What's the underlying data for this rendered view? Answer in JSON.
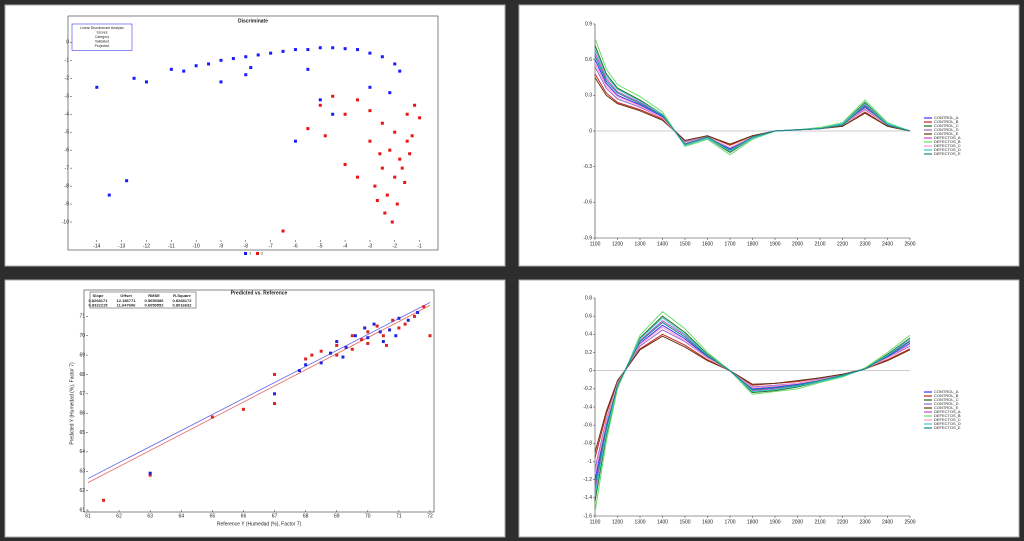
{
  "chart_data": [
    {
      "type": "scatter",
      "title": "Discriminate",
      "legend": "bottom",
      "info_box": [
        "Linear Discriminant Analysis",
        "Scores",
        "Category",
        "Validated",
        "Projected"
      ],
      "xlim": [
        -15,
        -0.5
      ],
      "xticks": [
        -14,
        -13,
        -12,
        -11,
        -10,
        -9,
        -8,
        -7,
        -6,
        -5,
        -4,
        -3,
        -2,
        -1
      ],
      "ylim": [
        -11,
        0.8
      ],
      "yticks": [
        0,
        -1,
        -2,
        -3,
        -4,
        -5,
        -6,
        -7,
        -8,
        -9,
        -10
      ],
      "series": [
        {
          "name": "1",
          "color": "#1a1aff",
          "x": [
            -14,
            -12.5,
            -12,
            -11,
            -10,
            -9.5,
            -9,
            -8.5,
            -8,
            -7.5,
            -7,
            -6.5,
            -6,
            -5.5,
            -5,
            -4.5,
            -4,
            -3.5,
            -3,
            -2.5,
            -2,
            -1.8,
            -9,
            -8,
            -5,
            -4.5,
            -6,
            -13.5,
            -12.8,
            -5.5,
            -3,
            -2.2,
            -10.5,
            -7.8
          ],
          "values": [
            -2.5,
            -2,
            -2.2,
            -1.5,
            -1.3,
            -1.2,
            -1.0,
            -0.9,
            -0.8,
            -0.7,
            -0.6,
            -0.5,
            -0.4,
            -0.4,
            -0.3,
            -0.3,
            -0.35,
            -0.4,
            -0.6,
            -0.8,
            -1.2,
            -1.6,
            -2.2,
            -1.8,
            -3.2,
            -4,
            -5.5,
            -8.5,
            -7.7,
            -1.5,
            -2.5,
            -2.8,
            -1.6,
            -1.4
          ]
        },
        {
          "name": "2",
          "color": "#ee1111",
          "x": [
            -5,
            -4.5,
            -4,
            -3.5,
            -3,
            -2.5,
            -2,
            -1.5,
            -1.2,
            -1.0,
            -2.2,
            -1.8,
            -1.5,
            -1.3,
            -2.5,
            -2.0,
            -1.7,
            -1.4,
            -2.8,
            -2.3,
            -1.9,
            -1.6,
            -3,
            -2.6,
            -4,
            -3.5,
            -5.5,
            -4.8,
            -2.4,
            -2.1,
            -6.5,
            -2.7
          ],
          "values": [
            -3.5,
            -3,
            -4,
            -3.2,
            -3.8,
            -4.5,
            -5,
            -4,
            -3.5,
            -4.2,
            -6,
            -6.5,
            -5.5,
            -5.2,
            -7,
            -7.5,
            -7,
            -6.2,
            -8,
            -8.5,
            -9,
            -7.8,
            -5.5,
            -6.2,
            -6.8,
            -7.5,
            -4.8,
            -5.2,
            -9.5,
            -10,
            -10.5,
            -8.8
          ]
        }
      ]
    },
    {
      "type": "line",
      "legend": "right",
      "x": [
        1100,
        1150,
        1200,
        1300,
        1400,
        1500,
        1600,
        1700,
        1800,
        1900,
        2000,
        2100,
        2200,
        2300,
        2400,
        2500
      ],
      "xlim": [
        1100,
        2500
      ],
      "xticks": [
        1100,
        1200,
        1300,
        1400,
        1500,
        1600,
        1700,
        1800,
        1900,
        2000,
        2100,
        2200,
        2300,
        2400,
        2500
      ],
      "ylim": [
        -0.9,
        0.9
      ],
      "yticks": [
        -0.9,
        -0.6,
        -0.3,
        0,
        0.3,
        0.6,
        0.9
      ],
      "series": [
        {
          "name": "CONTROL_A",
          "color": "#3333ff",
          "values": [
            0.6,
            0.4,
            0.3,
            0.22,
            0.12,
            -0.1,
            -0.05,
            -0.15,
            -0.05,
            0,
            0.01,
            0.02,
            0.05,
            0.2,
            0.05,
            0
          ]
        },
        {
          "name": "CONTROL_B",
          "color": "#cc2222",
          "values": [
            0.48,
            0.32,
            0.24,
            0.18,
            0.1,
            -0.08,
            -0.04,
            -0.12,
            -0.04,
            0,
            0.01,
            0.02,
            0.04,
            0.16,
            0.04,
            0
          ]
        },
        {
          "name": "CONTROL_C",
          "color": "#226622",
          "values": [
            0.72,
            0.48,
            0.36,
            0.26,
            0.14,
            -0.12,
            -0.06,
            -0.18,
            -0.06,
            0,
            0.01,
            0.02,
            0.06,
            0.24,
            0.06,
            0
          ]
        },
        {
          "name": "CONTROL_D",
          "color": "#9966cc",
          "values": [
            0.54,
            0.36,
            0.27,
            0.2,
            0.11,
            -0.09,
            -0.05,
            -0.14,
            -0.05,
            0,
            0.01,
            0.02,
            0.05,
            0.18,
            0.05,
            0
          ]
        },
        {
          "name": "CONTROL_E",
          "color": "#663311",
          "values": [
            0.45,
            0.3,
            0.23,
            0.17,
            0.09,
            -0.08,
            -0.04,
            -0.11,
            -0.04,
            0,
            0.01,
            0.02,
            0.04,
            0.15,
            0.04,
            0
          ]
        },
        {
          "name": "DEFECTOS_A",
          "color": "#cc44cc",
          "values": [
            0.66,
            0.44,
            0.33,
            0.24,
            0.13,
            -0.11,
            -0.06,
            -0.17,
            -0.06,
            0,
            0.01,
            0.02,
            0.06,
            0.22,
            0.06,
            0
          ]
        },
        {
          "name": "DEFECTOS_B",
          "color": "#66dd66",
          "values": [
            0.78,
            0.52,
            0.39,
            0.29,
            0.16,
            -0.13,
            -0.07,
            -0.2,
            -0.07,
            0,
            0.01,
            0.03,
            0.07,
            0.26,
            0.07,
            0
          ]
        },
        {
          "name": "DEFECTOS_C",
          "color": "#ff99cc",
          "values": [
            0.57,
            0.38,
            0.29,
            0.21,
            0.11,
            -0.1,
            -0.05,
            -0.14,
            -0.05,
            0,
            0.01,
            0.02,
            0.05,
            0.19,
            0.05,
            0
          ]
        },
        {
          "name": "DEFECTOS_D",
          "color": "#33cccc",
          "values": [
            0.69,
            0.46,
            0.35,
            0.25,
            0.14,
            -0.12,
            -0.06,
            -0.17,
            -0.06,
            0,
            0.01,
            0.02,
            0.06,
            0.23,
            0.06,
            0
          ]
        },
        {
          "name": "DEFECTOS_E",
          "color": "#118888",
          "values": [
            0.63,
            0.42,
            0.32,
            0.23,
            0.13,
            -0.11,
            -0.05,
            -0.16,
            -0.05,
            0,
            0.01,
            0.02,
            0.05,
            0.21,
            0.05,
            0
          ]
        }
      ]
    },
    {
      "type": "scatter",
      "title": "Predicted vs. Reference",
      "x_label": "Reference Y (Humedad (%), Factor 7)",
      "y_label": "Predicted Y (Humedad (%), Factor 7)",
      "xlim": [
        61,
        72
      ],
      "xticks": [
        61,
        62,
        63,
        64,
        65,
        66,
        67,
        68,
        69,
        70,
        71,
        72
      ],
      "ylim": [
        61,
        72
      ],
      "yticks": [
        61,
        62,
        63,
        64,
        65,
        66,
        67,
        68,
        69,
        70,
        71
      ],
      "stats": {
        "columns": [
          "Slope",
          "Offset",
          "RMSE",
          "R-Square"
        ],
        "rows": [
          [
            0.8268171,
            12.186771,
            0.5655386,
            0.8268172
          ],
          [
            0.8322215,
            11.647606,
            0.6059552,
            0.8016632
          ]
        ],
        "colors": [
          "#2222dd",
          "#dd2222"
        ]
      },
      "series": [
        {
          "color": "#dd2222",
          "x": [
            61.5,
            63,
            65,
            66,
            67,
            67,
            68,
            68.5,
            69,
            69,
            69.5,
            69.5,
            70,
            70,
            70.3,
            70.5,
            70.8,
            71,
            71.2,
            71.5,
            68.2,
            69.8,
            70.6,
            71.8,
            72
          ],
          "values": [
            61.5,
            62.8,
            65.8,
            66.2,
            66.5,
            68,
            68.8,
            69.2,
            69.5,
            69,
            70,
            69.3,
            70.2,
            69.6,
            70.5,
            70,
            70.8,
            70.4,
            70.6,
            71,
            69,
            69.8,
            69.5,
            71.5,
            70
          ]
        },
        {
          "color": "#2222dd",
          "x": [
            63,
            67,
            68,
            68.5,
            69,
            69.3,
            69.6,
            70,
            70.2,
            70.4,
            70.7,
            71,
            71.3,
            68.8,
            69.9,
            70.5,
            71.6,
            67.8,
            69.2,
            70.9
          ],
          "values": [
            62.9,
            67,
            68.5,
            68.6,
            69.7,
            69.4,
            70,
            69.9,
            70.6,
            70.2,
            70.3,
            70.9,
            70.8,
            69.1,
            70.4,
            69.7,
            71.2,
            68.2,
            68.9,
            70
          ]
        }
      ]
    },
    {
      "type": "line",
      "legend": "right",
      "x": [
        1100,
        1150,
        1200,
        1300,
        1400,
        1500,
        1600,
        1700,
        1800,
        1900,
        2000,
        2100,
        2200,
        2300,
        2400,
        2500
      ],
      "xlim": [
        1100,
        2500
      ],
      "xticks": [
        1100,
        1200,
        1300,
        1400,
        1500,
        1600,
        1700,
        1800,
        1900,
        2000,
        2100,
        2200,
        2300,
        2400,
        2500
      ],
      "ylim": [
        -1.6,
        0.8
      ],
      "yticks": [
        -1.6,
        -1.4,
        -1.2,
        -1,
        -0.8,
        -0.6,
        -0.4,
        -0.2,
        0,
        0.2,
        0.4,
        0.6,
        0.8
      ],
      "series": [
        {
          "name": "CONTROL_A",
          "color": "#3333ff",
          "values": [
            -1.2,
            -0.6,
            -0.15,
            0.3,
            0.5,
            0.35,
            0.15,
            0.0,
            -0.2,
            -0.18,
            -0.15,
            -0.1,
            -0.05,
            0.02,
            0.15,
            0.3
          ]
        },
        {
          "name": "CONTROL_B",
          "color": "#cc2222",
          "values": [
            -0.96,
            -0.48,
            -0.12,
            0.24,
            0.4,
            0.28,
            0.12,
            0,
            -0.16,
            -0.14,
            -0.12,
            -0.08,
            -0.04,
            0.02,
            0.12,
            0.24
          ]
        },
        {
          "name": "CONTROL_C",
          "color": "#226622",
          "values": [
            -1.44,
            -0.72,
            -0.18,
            0.36,
            0.6,
            0.42,
            0.18,
            0,
            -0.24,
            -0.22,
            -0.18,
            -0.12,
            -0.06,
            0.02,
            0.18,
            0.36
          ]
        },
        {
          "name": "CONTROL_D",
          "color": "#9966cc",
          "values": [
            -1.08,
            -0.54,
            -0.14,
            0.27,
            0.45,
            0.32,
            0.14,
            0,
            -0.18,
            -0.16,
            -0.14,
            -0.09,
            -0.05,
            0.02,
            0.14,
            0.27
          ]
        },
        {
          "name": "CONTROL_E",
          "color": "#663311",
          "values": [
            -0.9,
            -0.45,
            -0.11,
            0.23,
            0.38,
            0.26,
            0.11,
            0,
            -0.15,
            -0.14,
            -0.11,
            -0.08,
            -0.04,
            0.02,
            0.11,
            0.23
          ]
        },
        {
          "name": "DEFECTOS_A",
          "color": "#cc44cc",
          "values": [
            -1.32,
            -0.66,
            -0.17,
            0.33,
            0.55,
            0.39,
            0.17,
            0,
            -0.22,
            -0.2,
            -0.17,
            -0.11,
            -0.06,
            0.02,
            0.17,
            0.33
          ]
        },
        {
          "name": "DEFECTOS_B",
          "color": "#66dd66",
          "values": [
            -1.56,
            -0.78,
            -0.2,
            0.39,
            0.65,
            0.46,
            0.2,
            0,
            -0.26,
            -0.23,
            -0.2,
            -0.13,
            -0.07,
            0.03,
            0.2,
            0.39
          ]
        },
        {
          "name": "DEFECTOS_C",
          "color": "#ff99cc",
          "values": [
            -1.14,
            -0.57,
            -0.14,
            0.29,
            0.48,
            0.33,
            0.14,
            0,
            -0.19,
            -0.17,
            -0.14,
            -0.1,
            -0.05,
            0.02,
            0.14,
            0.29
          ]
        },
        {
          "name": "DEFECTOS_D",
          "color": "#33cccc",
          "values": [
            -1.38,
            -0.69,
            -0.17,
            0.35,
            0.58,
            0.4,
            0.17,
            0,
            -0.23,
            -0.21,
            -0.17,
            -0.12,
            -0.06,
            0.02,
            0.17,
            0.35
          ]
        },
        {
          "name": "DEFECTOS_E",
          "color": "#118888",
          "values": [
            -1.26,
            -0.63,
            -0.16,
            0.32,
            0.53,
            0.37,
            0.16,
            0,
            -0.21,
            -0.19,
            -0.16,
            -0.11,
            -0.05,
            0.02,
            0.16,
            0.32
          ]
        }
      ]
    }
  ]
}
